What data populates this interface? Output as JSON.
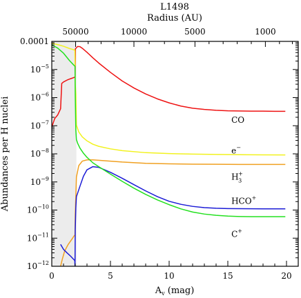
{
  "chart_data": {
    "type": "line",
    "title": "L1498",
    "top_axis_label": "Radius (AU)",
    "top_ticks": [
      {
        "label": "50000",
        "av": 2.03
      },
      {
        "label": "10000",
        "av": 7.0
      },
      {
        "label": "5000",
        "av": 12.2
      },
      {
        "label": "1000",
        "av": 18.2
      }
    ],
    "xlabel_base": "A",
    "xlabel_sub": "v",
    "xlabel_unit": " (mag)",
    "ylabel": "Abundances per H nuclei",
    "xlim": [
      0,
      21
    ],
    "ylim": [
      1e-12,
      0.0001
    ],
    "yscale": "log",
    "x_ticks": [
      {
        "v": 0,
        "label": "0"
      },
      {
        "v": 5,
        "label": "5"
      },
      {
        "v": 10,
        "label": "10"
      },
      {
        "v": 15,
        "label": "15"
      },
      {
        "v": 20,
        "label": "20"
      }
    ],
    "y_ticks": [
      {
        "exp": -4,
        "label": "0.0001",
        "base": "",
        "sup": ""
      },
      {
        "exp": -5,
        "label": "",
        "base": "10",
        "sup": "−5"
      },
      {
        "exp": -6,
        "label": "",
        "base": "10",
        "sup": "−6"
      },
      {
        "exp": -7,
        "label": "",
        "base": "10",
        "sup": "−7"
      },
      {
        "exp": -8,
        "label": "",
        "base": "10",
        "sup": "−8"
      },
      {
        "exp": -9,
        "label": "",
        "base": "10",
        "sup": "−9"
      },
      {
        "exp": -10,
        "label": "",
        "base": "10",
        "sup": "−10"
      },
      {
        "exp": -11,
        "label": "",
        "base": "10",
        "sup": "−11"
      },
      {
        "exp": -12,
        "label": "",
        "base": "10",
        "sup": "−12"
      }
    ],
    "shaded_region": {
      "x0": 0,
      "x1": 2.1,
      "color": "#ececec"
    },
    "series": [
      {
        "name": "CO",
        "label_base": "CO",
        "label_sub": "",
        "label_sup": "",
        "color": "#ee1111",
        "label_x": 15.3,
        "label_y": 1.6e-07,
        "x": [
          0,
          0.25,
          0.5,
          0.75,
          0.85,
          1.0,
          1.3,
          1.6,
          1.9,
          1.99,
          2.01,
          2.2,
          2.4,
          2.6,
          3.0,
          3.5,
          4.0,
          5.0,
          6.0,
          7.0,
          8.0,
          9.0,
          10.0,
          11.0,
          12.0,
          13.0,
          14.0,
          15.0,
          16.0,
          17.0,
          18.0,
          19.0,
          19.9
        ],
        "y": [
          9e-08,
          1.8e-07,
          2.4e-07,
          4e-07,
          3.2e-06,
          3.6e-06,
          4.2e-06,
          4.7e-06,
          5.2e-06,
          5.5e-06,
          5.4e-05,
          6.6e-05,
          6.5e-05,
          5.7e-05,
          4.1e-05,
          2.6e-05,
          1.7e-05,
          7.9e-06,
          3.9e-06,
          2.2e-06,
          1.35e-06,
          9e-07,
          6.5e-07,
          5e-07,
          4.2e-07,
          3.8e-07,
          3.55e-07,
          3.4e-07,
          3.35e-07,
          3.3e-07,
          3.3e-07,
          3.25e-07,
          3.25e-07
        ]
      },
      {
        "name": "e-",
        "label_base": "e",
        "label_sub": "",
        "label_sup": "−",
        "color": "#f2f21e",
        "label_x": 15.3,
        "label_y": 1.3e-08,
        "x": [
          0,
          0.5,
          1.0,
          1.5,
          1.9,
          1.97,
          2.0,
          2.05,
          2.1,
          2.3,
          2.6,
          3.0,
          3.5,
          4.0,
          5.0,
          6.0,
          8.0,
          10.0,
          12.0,
          14.0,
          16.0,
          18.0,
          19.9
        ],
        "y": [
          8.5e-05,
          7.7e-05,
          6.7e-05,
          5.6e-05,
          5e-05,
          4.8e-05,
          3e-06,
          1.4e-06,
          1.05e-07,
          6e-08,
          4e-08,
          2.9e-08,
          2.2e-08,
          1.85e-08,
          1.5e-08,
          1.3e-08,
          1.1e-08,
          1.02e-08,
          9.8e-09,
          9.5e-09,
          9.3e-09,
          9.2e-09,
          9.1e-09
        ]
      },
      {
        "name": "H3+",
        "label_base": "H",
        "label_sub": "3",
        "label_sup": "+",
        "color": "#f0a020",
        "label_x": 15.3,
        "label_y": 1.5e-09,
        "x": [
          0.75,
          0.9,
          1.1,
          1.4,
          1.7,
          1.9,
          1.98,
          2.0,
          2.05,
          2.1,
          2.3,
          2.6,
          3.0,
          3.5,
          4.0,
          5.0,
          6.0,
          8.0,
          10.0,
          12.0,
          14.0,
          16.0,
          18.0,
          19.9
        ],
        "y": [
          1e-12,
          1.8e-12,
          3.5e-12,
          6e-12,
          9e-12,
          1.2e-11,
          1.3e-11,
          7e-11,
          3e-10,
          1.5e-09,
          3.8e-09,
          5.5e-09,
          6.1e-09,
          6.1e-09,
          5.9e-09,
          5.5e-09,
          5.1e-09,
          4.6e-09,
          4.4e-09,
          4.3e-09,
          4.25e-09,
          4.2e-09,
          4.2e-09,
          4.2e-09
        ]
      },
      {
        "name": "HCO+",
        "label_base": "HCO",
        "label_sub": "",
        "label_sup": "+",
        "color": "#1a1ad6",
        "label_x": 15.3,
        "label_y": 2.1e-10,
        "x": [
          0.75,
          1.0,
          1.3,
          1.6,
          1.9,
          1.96,
          1.98,
          2.0,
          2.05,
          2.1,
          2.4,
          2.7,
          3.0,
          3.5,
          4.0,
          5.0,
          6.0,
          7.0,
          8.0,
          9.0,
          10.0,
          11.0,
          12.0,
          13.0,
          14.0,
          15.0,
          16.0,
          17.0,
          18.0,
          19.9
        ],
        "y": [
          6e-12,
          4e-12,
          3e-12,
          2.3e-12,
          1.7e-12,
          1.6e-12,
          1e-12,
          2e-11,
          1.2e-10,
          3e-10,
          7e-10,
          1.6e-09,
          2.7e-09,
          3.5e-09,
          3.3e-09,
          2.2e-09,
          1.35e-09,
          8e-10,
          4.8e-10,
          3e-10,
          2.05e-10,
          1.6e-10,
          1.35e-10,
          1.22e-10,
          1.16e-10,
          1.13e-10,
          1.12e-10,
          1.11e-10,
          1.1e-10,
          1.1e-10
        ]
      },
      {
        "name": "C+",
        "label_base": "C",
        "label_sub": "",
        "label_sup": "+",
        "color": "#22e01e",
        "label_x": 15.3,
        "label_y": 1.4e-11,
        "x": [
          0,
          0.5,
          1.0,
          1.5,
          1.9,
          1.98,
          2.0,
          2.05,
          2.1,
          2.2,
          2.4,
          2.7,
          3.0,
          3.5,
          4.0,
          5.0,
          6.0,
          7.0,
          8.0,
          9.0,
          10.0,
          11.0,
          12.0,
          13.0,
          14.0,
          15.0,
          16.0,
          17.0,
          18.0,
          19.9
        ],
        "y": [
          7.5e-05,
          5.8e-05,
          3.8e-05,
          2.1e-05,
          1.4e-05,
          1.3e-05,
          1.3e-06,
          7e-08,
          3.2e-08,
          2.4e-08,
          1.6e-08,
          1.05e-08,
          7.5e-09,
          4.8e-09,
          3.5e-09,
          1.9e-09,
          1.05e-09,
          6e-10,
          3.6e-10,
          2.3e-10,
          1.55e-10,
          1.1e-10,
          8.5e-11,
          7.2e-11,
          6.5e-11,
          6.1e-11,
          5.9e-11,
          5.8e-11,
          5.8e-11,
          5.8e-11
        ]
      }
    ]
  }
}
